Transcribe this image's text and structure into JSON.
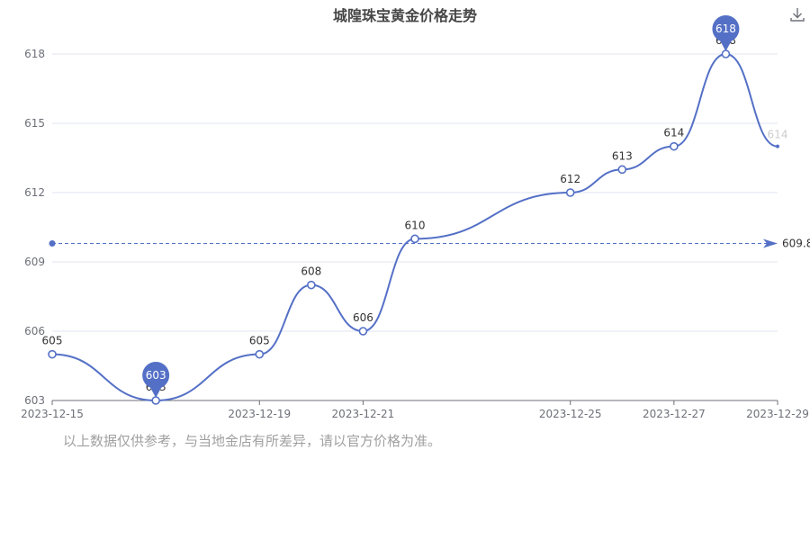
{
  "chart_data": {
    "type": "line",
    "title": "城隍珠宝黄金价格走势",
    "x": [
      "2023-12-15",
      "2023-12-16",
      "2023-12-17",
      "2023-12-18",
      "2023-12-19",
      "2023-12-20",
      "2023-12-21",
      "2023-12-22",
      "2023-12-23",
      "2023-12-24",
      "2023-12-25",
      "2023-12-26",
      "2023-12-27",
      "2023-12-28",
      "2023-12-29"
    ],
    "xtick_labels": [
      "2023-12-15",
      "2023-12-19",
      "2023-12-21",
      "2023-12-25",
      "2023-12-27",
      "2023-12-29"
    ],
    "points": [
      {
        "date": "2023-12-15",
        "value": 605
      },
      {
        "date": "2023-12-17",
        "value": 603
      },
      {
        "date": "2023-12-19",
        "value": 605
      },
      {
        "date": "2023-12-20",
        "value": 608
      },
      {
        "date": "2023-12-21",
        "value": 606
      },
      {
        "date": "2023-12-22",
        "value": 610
      },
      {
        "date": "2023-12-25",
        "value": 612
      },
      {
        "date": "2023-12-26",
        "value": 613
      },
      {
        "date": "2023-12-27",
        "value": 614
      },
      {
        "date": "2023-12-28",
        "value": 618
      },
      {
        "date": "2023-12-29",
        "value": 614
      }
    ],
    "yticks": [
      603,
      606,
      609,
      612,
      615,
      618
    ],
    "ylim": [
      603,
      618
    ],
    "average": 609.8,
    "average_label": "609.8",
    "max_marker": {
      "date": "2023-12-28",
      "value": 618,
      "label": "618"
    },
    "min_marker": {
      "date": "2023-12-17",
      "value": 603,
      "label": "603"
    },
    "grid": true,
    "line_color": "#5470c6",
    "grid_color": "#e0e6f1"
  },
  "footnote": "以上数据仅供参考，与当地金店有所差异，请以官方价格为准。"
}
